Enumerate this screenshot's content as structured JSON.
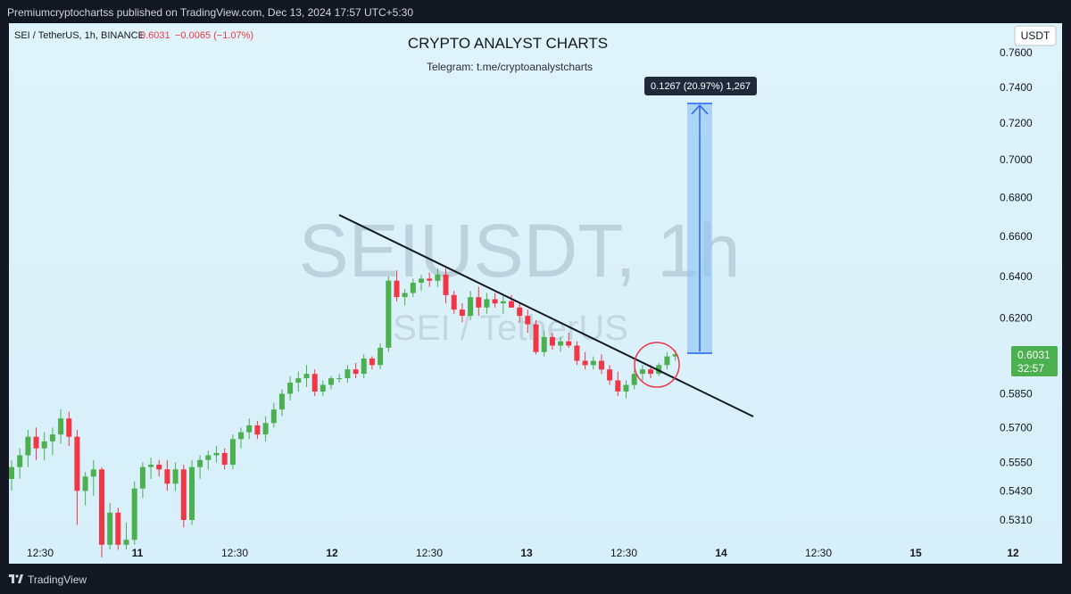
{
  "publish_line": "Premiumcryptochartss published on TradingView.com, Dec 13, 2024 17:57 UTC+5:30",
  "symbol_info": {
    "symbol": "SEI / TetherUS, 1h, BINANCE",
    "price": "0.6031",
    "change": "−0.0065 (−1.07%)"
  },
  "chart_header": {
    "title": "CRYPTO ANALYST CHARTS",
    "subtitle": "Telegram: t.me/cryptoanalystcharts"
  },
  "currency_badge": "USDT",
  "watermark": {
    "main": "SEIUSDT, 1h",
    "sub": "SEI / TetherUS"
  },
  "measure_label": "0.1267 (20.97%) 1,267",
  "price_badge": {
    "price": "0.6031",
    "countdown": "32:57"
  },
  "footer_brand": "TradingView",
  "colors": {
    "up": "#4caf50",
    "down": "#f23645",
    "measure": "#2962ff",
    "background": "#d9f0fb"
  },
  "chart_data": {
    "type": "candlestick",
    "y_axis": {
      "scale": "log",
      "side": "right",
      "ticks": [
        "0.7600",
        "0.7400",
        "0.7200",
        "0.7000",
        "0.6800",
        "0.6600",
        "0.6400",
        "0.6200",
        "0.5850",
        "0.5700",
        "0.5550",
        "0.5430",
        "0.5310"
      ]
    },
    "x_axis": {
      "ticks": [
        {
          "label": "12:30",
          "bold": false
        },
        {
          "label": "11",
          "bold": true
        },
        {
          "label": "12:30",
          "bold": false
        },
        {
          "label": "12",
          "bold": true
        },
        {
          "label": "12:30",
          "bold": false
        },
        {
          "label": "13",
          "bold": true
        },
        {
          "label": "12:30",
          "bold": false
        },
        {
          "label": "14",
          "bold": true
        },
        {
          "label": "12:30",
          "bold": false
        },
        {
          "label": "15",
          "bold": true
        },
        {
          "label": "12",
          "bold": true
        }
      ]
    },
    "candles": [
      [
        0.548,
        0.556,
        0.543,
        0.553
      ],
      [
        0.553,
        0.561,
        0.548,
        0.558
      ],
      [
        0.558,
        0.569,
        0.553,
        0.566
      ],
      [
        0.566,
        0.57,
        0.556,
        0.561
      ],
      [
        0.561,
        0.568,
        0.556,
        0.564
      ],
      [
        0.564,
        0.57,
        0.558,
        0.567
      ],
      [
        0.567,
        0.578,
        0.563,
        0.574
      ],
      [
        0.574,
        0.577,
        0.562,
        0.566
      ],
      [
        0.566,
        0.569,
        0.529,
        0.543
      ],
      [
        0.543,
        0.551,
        0.537,
        0.549
      ],
      [
        0.549,
        0.556,
        0.541,
        0.552
      ],
      [
        0.552,
        0.553,
        0.516,
        0.521
      ],
      [
        0.521,
        0.538,
        0.519,
        0.534
      ],
      [
        0.534,
        0.536,
        0.519,
        0.521
      ],
      [
        0.521,
        0.53,
        0.519,
        0.523
      ],
      [
        0.523,
        0.547,
        0.521,
        0.544
      ],
      [
        0.544,
        0.555,
        0.54,
        0.553
      ],
      [
        0.553,
        0.557,
        0.548,
        0.554
      ],
      [
        0.554,
        0.556,
        0.549,
        0.552
      ],
      [
        0.552,
        0.556,
        0.543,
        0.546
      ],
      [
        0.546,
        0.555,
        0.543,
        0.552
      ],
      [
        0.552,
        0.554,
        0.528,
        0.531
      ],
      [
        0.531,
        0.556,
        0.529,
        0.553
      ],
      [
        0.553,
        0.558,
        0.548,
        0.556
      ],
      [
        0.556,
        0.56,
        0.552,
        0.558
      ],
      [
        0.558,
        0.562,
        0.555,
        0.559
      ],
      [
        0.559,
        0.561,
        0.552,
        0.554
      ],
      [
        0.554,
        0.567,
        0.552,
        0.565
      ],
      [
        0.565,
        0.57,
        0.561,
        0.568
      ],
      [
        0.568,
        0.574,
        0.565,
        0.571
      ],
      [
        0.571,
        0.573,
        0.565,
        0.567
      ],
      [
        0.567,
        0.575,
        0.564,
        0.572
      ],
      [
        0.572,
        0.581,
        0.57,
        0.578
      ],
      [
        0.578,
        0.587,
        0.575,
        0.585
      ],
      [
        0.585,
        0.593,
        0.582,
        0.59
      ],
      [
        0.59,
        0.595,
        0.586,
        0.592
      ],
      [
        0.592,
        0.598,
        0.588,
        0.594
      ],
      [
        0.594,
        0.596,
        0.584,
        0.586
      ],
      [
        0.586,
        0.591,
        0.584,
        0.589
      ],
      [
        0.589,
        0.593,
        0.587,
        0.592
      ],
      [
        0.592,
        0.594,
        0.59,
        0.592
      ],
      [
        0.592,
        0.598,
        0.59,
        0.596
      ],
      [
        0.596,
        0.599,
        0.592,
        0.594
      ],
      [
        0.594,
        0.603,
        0.592,
        0.601
      ],
      [
        0.601,
        0.602,
        0.596,
        0.598
      ],
      [
        0.598,
        0.608,
        0.596,
        0.606
      ],
      [
        0.606,
        0.64,
        0.604,
        0.638
      ],
      [
        0.638,
        0.643,
        0.628,
        0.63
      ],
      [
        0.63,
        0.634,
        0.626,
        0.632
      ],
      [
        0.632,
        0.639,
        0.63,
        0.637
      ],
      [
        0.637,
        0.641,
        0.633,
        0.639
      ],
      [
        0.639,
        0.642,
        0.635,
        0.638
      ],
      [
        0.638,
        0.644,
        0.635,
        0.641
      ],
      [
        0.641,
        0.644,
        0.627,
        0.631
      ],
      [
        0.631,
        0.633,
        0.622,
        0.624
      ],
      [
        0.624,
        0.627,
        0.618,
        0.621
      ],
      [
        0.621,
        0.633,
        0.619,
        0.63
      ],
      [
        0.63,
        0.635,
        0.621,
        0.625
      ],
      [
        0.625,
        0.632,
        0.622,
        0.629
      ],
      [
        0.629,
        0.632,
        0.625,
        0.627
      ],
      [
        0.627,
        0.631,
        0.622,
        0.628
      ],
      [
        0.628,
        0.631,
        0.625,
        0.625
      ],
      [
        0.625,
        0.627,
        0.618,
        0.621
      ],
      [
        0.621,
        0.624,
        0.613,
        0.617
      ],
      [
        0.617,
        0.619,
        0.603,
        0.604
      ],
      [
        0.604,
        0.614,
        0.602,
        0.611
      ],
      [
        0.611,
        0.613,
        0.605,
        0.607
      ],
      [
        0.607,
        0.611,
        0.604,
        0.609
      ],
      [
        0.609,
        0.613,
        0.606,
        0.607
      ],
      [
        0.607,
        0.609,
        0.598,
        0.6
      ],
      [
        0.6,
        0.604,
        0.596,
        0.598
      ],
      [
        0.598,
        0.602,
        0.596,
        0.6
      ],
      [
        0.6,
        0.603,
        0.594,
        0.596
      ],
      [
        0.596,
        0.598,
        0.589,
        0.591
      ],
      [
        0.591,
        0.595,
        0.584,
        0.586
      ],
      [
        0.586,
        0.591,
        0.583,
        0.589
      ],
      [
        0.589,
        0.596,
        0.587,
        0.594
      ],
      [
        0.594,
        0.598,
        0.591,
        0.596
      ],
      [
        0.596,
        0.598,
        0.592,
        0.594
      ],
      [
        0.594,
        0.599,
        0.593,
        0.598
      ],
      [
        0.598,
        0.604,
        0.596,
        0.602
      ],
      [
        0.602,
        0.605,
        0.6,
        0.603
      ]
    ]
  }
}
